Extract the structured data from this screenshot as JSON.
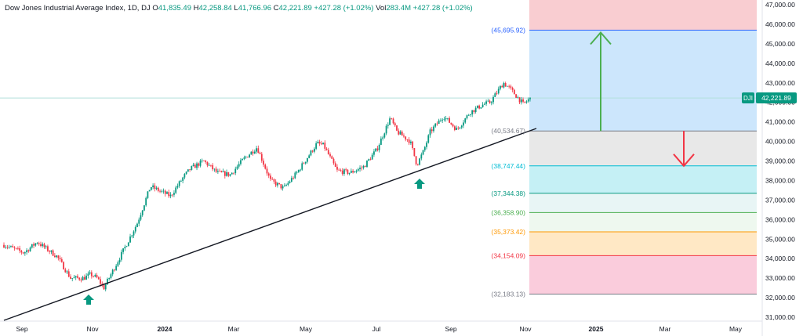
{
  "header": {
    "title": "Dow Jones Industrial Average Index, 1D, DJ",
    "o_label": "O",
    "o_value": "41,835.49",
    "h_label": "H",
    "h_value": "42,258.84",
    "l_label": "L",
    "l_value": "41,766.96",
    "c_label": "C",
    "c_value": "42,221.89",
    "change": "+427.28 (+1.02%)",
    "vol_label": "Vol",
    "vol_value": "283.4M",
    "vol_change": "+427.28 (+1.02%)"
  },
  "price_tag": {
    "symbol": "DJI",
    "value": "42,221.89"
  },
  "colors": {
    "up": "#089981",
    "down": "#f23645",
    "trend": "#131722",
    "arrow_up": "#4caf50",
    "arrow_down": "#f23645",
    "marker": "#089981"
  },
  "chart_data": {
    "type": "candlestick",
    "x_ticks": [
      "Sep",
      "Nov",
      "2024",
      "Mar",
      "May",
      "Jul",
      "Sep",
      "Nov",
      "2025",
      "Mar",
      "May"
    ],
    "y_ticks": [
      "31,000.00",
      "32,000.00",
      "33,000.00",
      "34,000.00",
      "35,000.00",
      "36,000.00",
      "37,000.00",
      "38,000.00",
      "39,000.00",
      "40,000.00",
      "41,000.00",
      "42,000.00",
      "43,000.00",
      "44,000.00",
      "45,000.00",
      "46,000.00",
      "47,000.00"
    ],
    "ylim": [
      30800,
      47200
    ],
    "last_price": 42221.89,
    "price_path": [
      [
        0,
        34700
      ],
      [
        3,
        34300
      ],
      [
        5,
        34850
      ],
      [
        8,
        34100
      ],
      [
        10,
        33000
      ],
      [
        12,
        33000
      ],
      [
        13,
        33200
      ],
      [
        14,
        33000
      ],
      [
        15,
        32500
      ],
      [
        17,
        33800
      ],
      [
        20,
        35800
      ],
      [
        22,
        37700
      ],
      [
        25,
        37200
      ],
      [
        27,
        38200
      ],
      [
        28,
        38600
      ],
      [
        30,
        39000
      ],
      [
        32,
        38400
      ],
      [
        34,
        38300
      ],
      [
        36,
        39100
      ],
      [
        38,
        39700
      ],
      [
        40,
        38000
      ],
      [
        42,
        37600
      ],
      [
        44,
        38400
      ],
      [
        47,
        39900
      ],
      [
        48,
        39800
      ],
      [
        50,
        38500
      ],
      [
        52,
        38400
      ],
      [
        54,
        38700
      ],
      [
        56,
        39600
      ],
      [
        58,
        41200
      ],
      [
        59,
        40500
      ],
      [
        61,
        40000
      ],
      [
        62,
        38800
      ],
      [
        63,
        39500
      ],
      [
        64,
        40500
      ],
      [
        66,
        41300
      ],
      [
        68,
        40600
      ],
      [
        70,
        41500
      ],
      [
        72,
        41900
      ],
      [
        73,
        42000
      ],
      [
        75,
        43000
      ],
      [
        76,
        42700
      ],
      [
        78,
        41900
      ],
      [
        79,
        42222
      ]
    ],
    "fib_levels": [
      {
        "label": "(32,183.13)",
        "value": 32183.13,
        "color": "#787b86"
      },
      {
        "label": "(34,154.09)",
        "value": 34154.09,
        "color": "#f23645"
      },
      {
        "label": "(35,373.42)",
        "value": 35373.42,
        "color": "#ff9800"
      },
      {
        "label": "(36,358.90)",
        "value": 36358.9,
        "color": "#4caf50"
      },
      {
        "label": "(37,344.38)",
        "value": 37344.38,
        "color": "#089981"
      },
      {
        "label": "(38,747.44)",
        "value": 38747.44,
        "color": "#00bcd4"
      },
      {
        "label": "(40,534.67)",
        "value": 40534.67,
        "color": "#787b86"
      },
      {
        "label": "(45,695.92)",
        "value": 45695.92,
        "color": "#2962ff"
      }
    ]
  }
}
